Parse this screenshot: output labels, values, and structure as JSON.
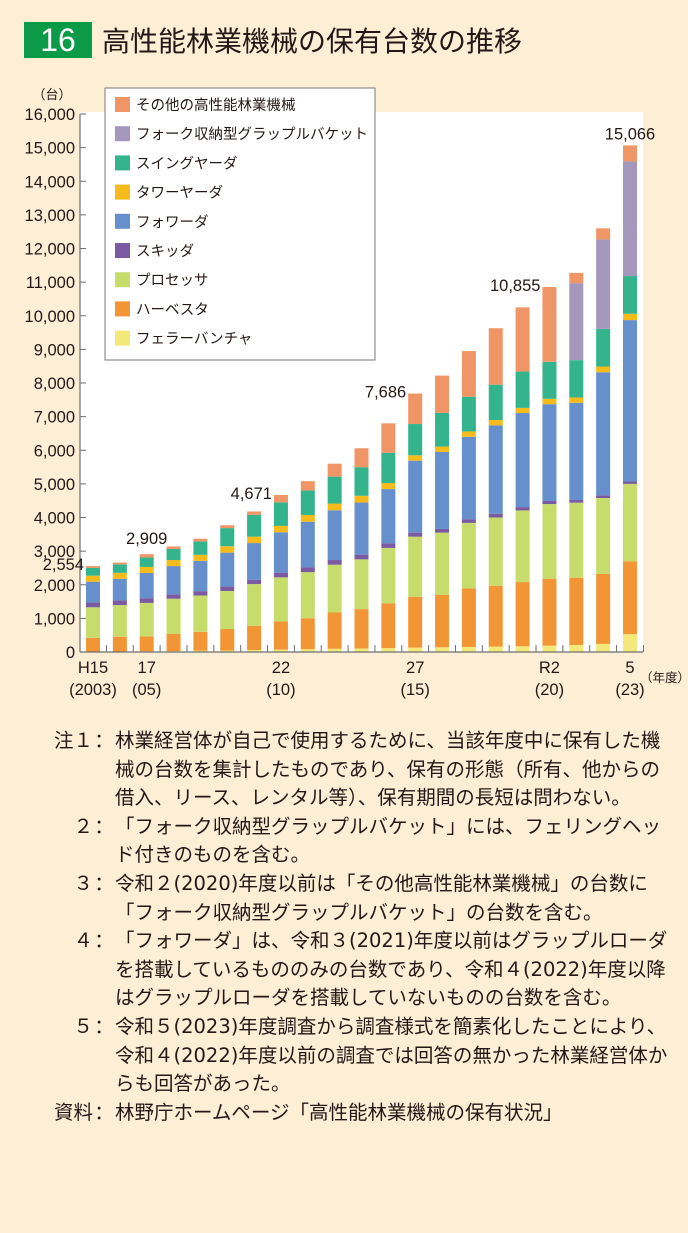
{
  "figure": {
    "number": "16",
    "title": "高性能林業機械の保有台数の推移",
    "accent_color": "#0a9a48"
  },
  "chart_data": {
    "type": "bar",
    "stacked": true,
    "title": "高性能林業機械の保有台数の推移",
    "ylabel": "（台）",
    "xlabel": "（年度）",
    "ylim": [
      0,
      16000
    ],
    "yticks": [
      0,
      1000,
      2000,
      3000,
      4000,
      5000,
      6000,
      7000,
      8000,
      9000,
      10000,
      11000,
      12000,
      13000,
      14000,
      15000,
      16000
    ],
    "ytick_labels": [
      "0",
      "1,000",
      "2,000",
      "3,000",
      "4,000",
      "5,000",
      "6,000",
      "7,000",
      "8,000",
      "9,000",
      "10,000",
      "11,000",
      "12,000",
      "13,000",
      "14,000",
      "15,000",
      "16,000"
    ],
    "grid": false,
    "legend_position": "top-left",
    "categories": [
      "2003",
      "2004",
      "2005",
      "2006",
      "2007",
      "2008",
      "2009",
      "2010",
      "2011",
      "2012",
      "2013",
      "2014",
      "2015",
      "2016",
      "2017",
      "2018",
      "2019",
      "2020",
      "2021",
      "2022",
      "2023"
    ],
    "x_tick_labels": [
      {
        "index": 0,
        "line1": "H15",
        "line2": "(2003)"
      },
      {
        "index": 2,
        "line1": "17",
        "line2": "(05)"
      },
      {
        "index": 7,
        "line1": "22",
        "line2": "(10)"
      },
      {
        "index": 12,
        "line1": "27",
        "line2": "(15)"
      },
      {
        "index": 17,
        "line1": "R2",
        "line2": "(20)"
      },
      {
        "index": 20,
        "line1": "5",
        "line2": "(23)"
      }
    ],
    "series": [
      {
        "name": "フェラーバンチャ",
        "color": "#f3e97a",
        "values": [
          10,
          15,
          20,
          25,
          40,
          45,
          60,
          70,
          85,
          95,
          105,
          115,
          130,
          140,
          150,
          160,
          170,
          190,
          210,
          240,
          530
        ]
      },
      {
        "name": "ハーベスタ",
        "color": "#f29535",
        "values": [
          410,
          440,
          440,
          510,
          560,
          640,
          720,
          840,
          920,
          1080,
          1170,
          1330,
          1510,
          1560,
          1740,
          1810,
          1910,
          1990,
          2000,
          2080,
          2170
        ]
      },
      {
        "name": "プロセッサ",
        "color": "#c8dc6c",
        "values": [
          910,
          940,
          1000,
          1050,
          1080,
          1130,
          1240,
          1310,
          1370,
          1420,
          1480,
          1650,
          1790,
          1850,
          1950,
          2030,
          2130,
          2220,
          2230,
          2260,
          2300
        ]
      },
      {
        "name": "スキッダ",
        "color": "#7a5aa0",
        "values": [
          140,
          140,
          140,
          130,
          130,
          130,
          130,
          140,
          140,
          140,
          140,
          140,
          120,
          110,
          110,
          110,
          100,
          90,
          80,
          80,
          70
        ]
      },
      {
        "name": "フォワーダ",
        "color": "#6690cb",
        "values": [
          620,
          640,
          750,
          840,
          900,
          1010,
          1090,
          1200,
          1360,
          1480,
          1550,
          1610,
          2140,
          2290,
          2450,
          2630,
          2800,
          2880,
          2890,
          3660,
          4800
        ]
      },
      {
        "name": "タワーヤーダ",
        "color": "#f5bb1a",
        "values": [
          180,
          180,
          180,
          180,
          180,
          190,
          190,
          190,
          200,
          200,
          200,
          180,
          160,
          160,
          160,
          160,
          150,
          160,
          160,
          170,
          190
        ]
      },
      {
        "name": "スイングヤーダ",
        "color": "#33b48c",
        "values": [
          230,
          250,
          280,
          330,
          400,
          540,
          650,
          700,
          730,
          800,
          850,
          900,
          930,
          1000,
          1030,
          1050,
          1080,
          1100,
          1110,
          1120,
          1120
        ]
      },
      {
        "name": "フォーク収納型グラップルバケット",
        "color": "#a597bb",
        "values": [
          0,
          0,
          0,
          0,
          0,
          0,
          0,
          0,
          0,
          0,
          0,
          0,
          0,
          0,
          0,
          0,
          0,
          0,
          2290,
          2660,
          3410
        ]
      },
      {
        "name": "その他の高性能林業機械",
        "color": "#f09565",
        "values": [
          54,
          55,
          99,
          75,
          80,
          85,
          100,
          221,
          275,
          385,
          565,
          875,
          906,
          1110,
          1360,
          1680,
          1910,
          2225,
          305,
          330,
          476
        ]
      }
    ],
    "totals": [
      2554,
      2660,
      2909,
      3140,
      3370,
      3770,
      4180,
      4671,
      5080,
      5600,
      6060,
      7000,
      7686,
      8220,
      8950,
      9630,
      10350,
      10855,
      11275,
      12600,
      15066
    ],
    "annotations": [
      {
        "index": 0,
        "text": "2,554"
      },
      {
        "index": 2,
        "text": "2,909"
      },
      {
        "index": 7,
        "text": "4,671"
      },
      {
        "index": 12,
        "text": "7,686"
      },
      {
        "index": 17,
        "text": "10,855"
      },
      {
        "index": 20,
        "text": "15,066"
      }
    ],
    "legend_order": [
      "その他の高性能林業機械",
      "フォーク収納型グラップルバケット",
      "スイングヤーダ",
      "タワーヤーダ",
      "フォワーダ",
      "スキッダ",
      "プロセッサ",
      "ハーベスタ",
      "フェラーバンチャ"
    ]
  },
  "notes": [
    {
      "label": "注１",
      "text": "林業経営体が自己で使用するために、当該年度中に保有した機械の台数を集計したものであり、保有の形態（所有、他からの借入、リース、レンタル等）、保有期間の長短は問わない。"
    },
    {
      "label": "２",
      "text": "「フォーク収納型グラップルバケット」には、フェリングヘッド付きのものを含む。"
    },
    {
      "label": "３",
      "text": "令和２(2020)年度以前は「その他高性能林業機械」の台数に「フォーク収納型グラップルバケット」の台数を含む。"
    },
    {
      "label": "４",
      "text": "「フォワーダ」は、令和３(2021)年度以前はグラップルローダを搭載しているもののみの台数であり、令和４(2022)年度以降はグラップルローダを搭載していないものの台数を含む。"
    },
    {
      "label": "５",
      "text": "令和５(2023)年度調査から調査様式を簡素化したことにより、令和４(2022)年度以前の調査では回答の無かった林業経営体からも回答があった。"
    },
    {
      "label": "資料",
      "text": "林野庁ホームページ「高性能林業機械の保有状況」"
    }
  ],
  "note_colon": "："
}
